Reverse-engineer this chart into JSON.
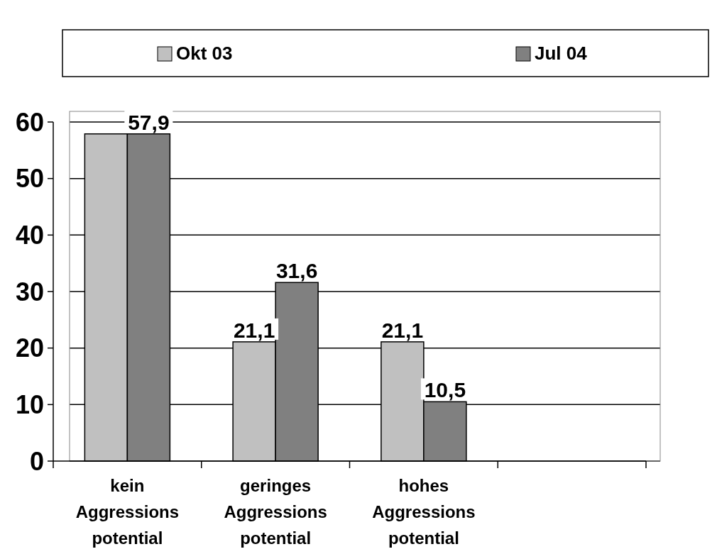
{
  "chart_data": {
    "type": "bar",
    "categories": [
      "kein Aggressions potential",
      "geringes Aggressions potential",
      "hohes Aggressions potential",
      null
    ],
    "series": [
      {
        "name": "Okt 03",
        "color": "#c0c0c0",
        "values": [
          57.9,
          21.1,
          21.1,
          null
        ],
        "value_labels": [
          null,
          "21,1",
          "21,1",
          null
        ]
      },
      {
        "name": "Jul 04",
        "color": "#808080",
        "values": [
          57.9,
          31.6,
          10.5,
          null
        ],
        "value_labels": [
          "57,9",
          "31,6",
          "10,5",
          null
        ]
      }
    ],
    "ylim": [
      0,
      60
    ],
    "yticks": [
      0,
      10,
      20,
      30,
      40,
      50,
      60
    ],
    "grid": "y",
    "legend": "top"
  }
}
